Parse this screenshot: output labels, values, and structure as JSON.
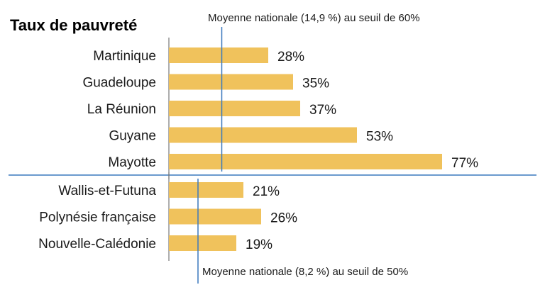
{
  "chart_data": {
    "type": "bar",
    "orientation": "horizontal",
    "title": "Taux de pauvreté",
    "value_suffix": "%",
    "bar_color": "#F0C25C",
    "reference_line_color": "#3A78BD",
    "axis_color": "#777777",
    "groups": [
      {
        "categories": [
          "Martinique",
          "Guadeloupe",
          "La Réunion",
          "Guyane",
          "Mayotte"
        ],
        "values": [
          28,
          35,
          37,
          53,
          77
        ],
        "labels": [
          "28%",
          "35%",
          "37%",
          "53%",
          "77%"
        ],
        "reference": {
          "value": 14.9,
          "label": "Moyenne nationale (14,9 %) au seuil de 60%"
        }
      },
      {
        "categories": [
          "Wallis-et-Futuna",
          "Polynésie française",
          "Nouvelle-Calédonie"
        ],
        "values": [
          21,
          26,
          19
        ],
        "labels": [
          "21%",
          "26%",
          "19%"
        ],
        "reference": {
          "value": 8.2,
          "label": "Moyenne nationale (8,2 %) au seuil de 50%"
        }
      }
    ]
  }
}
